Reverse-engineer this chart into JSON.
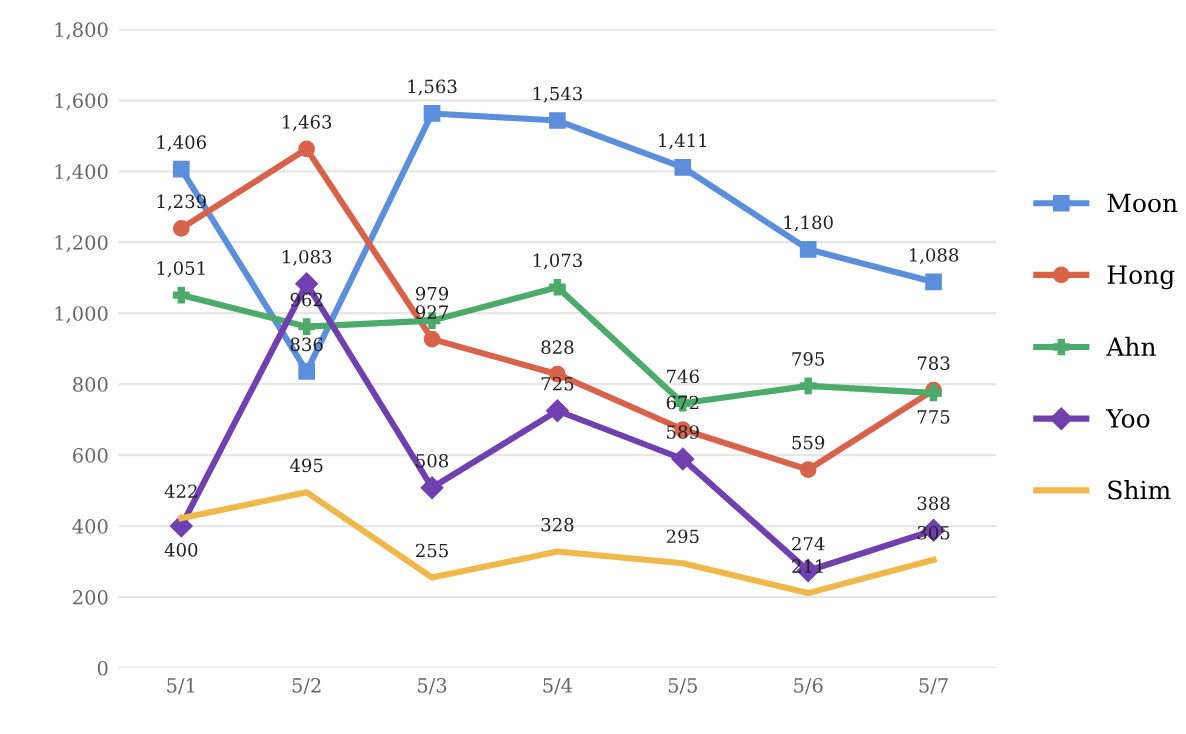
{
  "chart_data": {
    "type": "line",
    "categories": [
      "5/1",
      "5/2",
      "5/3",
      "5/4",
      "5/5",
      "5/6",
      "5/7"
    ],
    "series": [
      {
        "name": "Moon",
        "color": "#5b8fdc",
        "marker": "square",
        "values": [
          1406,
          836,
          1563,
          1543,
          1411,
          1180,
          1088
        ],
        "value_labels": [
          "1,406",
          "836",
          "1,563",
          "1,543",
          "1,411",
          "1,180",
          "1,088"
        ]
      },
      {
        "name": "Hong",
        "color": "#d9634a",
        "marker": "circle",
        "values": [
          1239,
          1463,
          927,
          828,
          672,
          559,
          783
        ],
        "value_labels": [
          "1,239",
          "1,463",
          "927",
          "828",
          "672",
          "559",
          "783"
        ]
      },
      {
        "name": "Ahn",
        "color": "#4caa6a",
        "marker": "cross",
        "values": [
          1051,
          962,
          979,
          1073,
          746,
          795,
          775
        ],
        "value_labels": [
          "1,051",
          "962",
          "979",
          "1,073",
          "746",
          "795",
          "775"
        ]
      },
      {
        "name": "Yoo",
        "color": "#7040b0",
        "marker": "diamond",
        "values": [
          400,
          1083,
          508,
          725,
          589,
          274,
          388
        ],
        "value_labels": [
          "400",
          "1,083",
          "508",
          "725",
          "589",
          "274",
          "388"
        ]
      },
      {
        "name": "Shim",
        "color": "#f0b84a",
        "marker": "none",
        "values": [
          422,
          495,
          255,
          328,
          295,
          211,
          305
        ],
        "value_labels": [
          "422",
          "495",
          "255",
          "328",
          "295",
          "211",
          "305"
        ]
      }
    ],
    "ylim": [
      0,
      1800
    ],
    "yticks": [
      0,
      {
        "value": 200,
        "label": "200"
      },
      {
        "value": 400,
        "label": "400"
      },
      {
        "value": 600,
        "label": "600"
      },
      {
        "value": 800,
        "label": "800"
      },
      {
        "value": 1000,
        "label": "1,000"
      },
      {
        "value": 1200,
        "label": "1,200"
      },
      {
        "value": 1400,
        "label": "1,400"
      },
      {
        "value": 1600,
        "label": "1,600"
      },
      {
        "value": 1800,
        "label": "1,800"
      }
    ],
    "grid": "y",
    "legend": "right",
    "line_style": "solid"
  }
}
